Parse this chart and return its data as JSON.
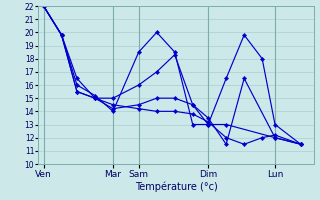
{
  "xlabel": "Température (°c)",
  "ylim": [
    10,
    22
  ],
  "yticks": [
    10,
    11,
    12,
    13,
    14,
    15,
    16,
    17,
    18,
    19,
    20,
    21,
    22
  ],
  "background_color": "#cce8e8",
  "grid_color": "#aacfcf",
  "line_color": "#0000cc",
  "day_labels": [
    "Ven",
    "Mar",
    "Sam",
    "Dim",
    "Lun"
  ],
  "day_positions": [
    0.0,
    0.27,
    0.37,
    0.64,
    0.9
  ],
  "lines": [
    {
      "x": [
        0.0,
        0.07,
        0.13,
        0.2,
        0.27,
        0.37,
        0.44,
        0.51,
        0.58,
        0.64,
        0.71,
        0.9,
        1.0
      ],
      "y": [
        22,
        19.8,
        16.5,
        15,
        15,
        16,
        17,
        18.3,
        14.5,
        13,
        13,
        12,
        11.5
      ]
    },
    {
      "x": [
        0.0,
        0.07,
        0.13,
        0.2,
        0.27,
        0.37,
        0.44,
        0.51,
        0.58,
        0.64,
        0.71,
        0.78,
        0.85,
        0.9,
        1.0
      ],
      "y": [
        22,
        19.8,
        16,
        15.2,
        14,
        18.5,
        20,
        18.5,
        13,
        13,
        16.5,
        19.8,
        18,
        13,
        11.5
      ]
    },
    {
      "x": [
        0.0,
        0.07,
        0.13,
        0.2,
        0.27,
        0.37,
        0.44,
        0.51,
        0.58,
        0.64,
        0.71,
        0.78,
        0.9,
        1.0
      ],
      "y": [
        22,
        19.8,
        15.5,
        15,
        14.2,
        14.5,
        15,
        15,
        14.5,
        13.5,
        11.5,
        16.5,
        12,
        11.5
      ]
    },
    {
      "x": [
        0.0,
        0.07,
        0.13,
        0.2,
        0.27,
        0.37,
        0.44,
        0.51,
        0.58,
        0.64,
        0.71,
        0.78,
        0.85,
        0.9,
        1.0
      ],
      "y": [
        22,
        19.8,
        15.5,
        15,
        14.5,
        14.2,
        14,
        14,
        13.8,
        13.2,
        12,
        11.5,
        12,
        12.2,
        11.5
      ]
    }
  ]
}
